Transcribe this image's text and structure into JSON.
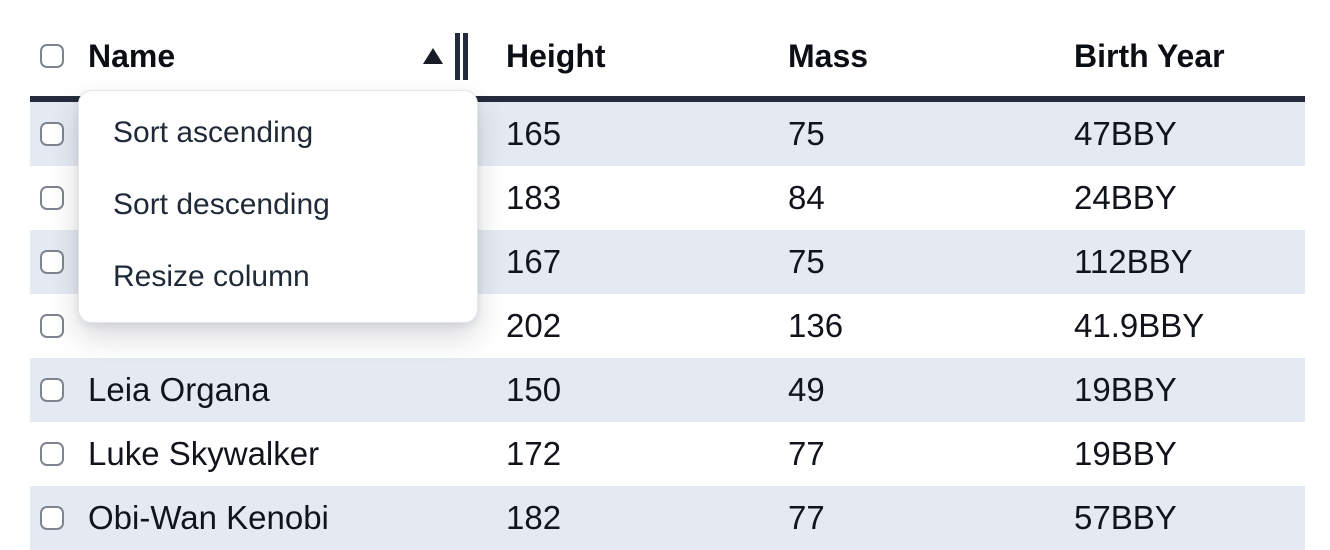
{
  "table": {
    "columns": [
      {
        "label": "Name"
      },
      {
        "label": "Height"
      },
      {
        "label": "Mass"
      },
      {
        "label": "Birth Year"
      }
    ],
    "sort": {
      "column": "Name",
      "direction": "ascending"
    },
    "rows": [
      {
        "name": "",
        "height": "165",
        "mass": "75",
        "birth_year": "47BBY"
      },
      {
        "name": "",
        "height": "183",
        "mass": "84",
        "birth_year": "24BBY"
      },
      {
        "name": "",
        "height": "167",
        "mass": "75",
        "birth_year": "112BBY"
      },
      {
        "name": "",
        "height": "202",
        "mass": "136",
        "birth_year": "41.9BBY"
      },
      {
        "name": "Leia Organa",
        "height": "150",
        "mass": "49",
        "birth_year": "19BBY"
      },
      {
        "name": "Luke Skywalker",
        "height": "172",
        "mass": "77",
        "birth_year": "19BBY"
      },
      {
        "name": "Obi-Wan Kenobi",
        "height": "182",
        "mass": "77",
        "birth_year": "57BBY"
      }
    ]
  },
  "context_menu": {
    "items": [
      {
        "label": "Sort ascending"
      },
      {
        "label": "Sort descending"
      },
      {
        "label": "Resize column"
      }
    ]
  },
  "colors": {
    "header_border": "#232b3c",
    "row_stripe": "#e5eaf2",
    "menu_text": "#1f2937",
    "body_text": "#11151b"
  }
}
